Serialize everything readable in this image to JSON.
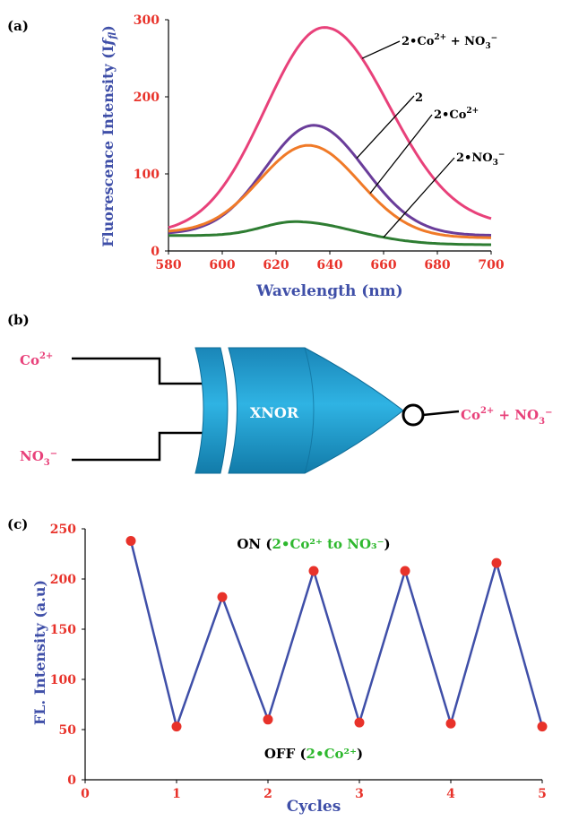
{
  "panel_a": {
    "label": "(a)",
    "chart_data": {
      "type": "line",
      "xlabel": "Wavelength (nm)",
      "ylabel": "Fluorescence Intensity (I",
      "ylabel_sub": "fl",
      "ylabel_close": ")",
      "xlim": [
        580,
        700
      ],
      "ylim": [
        0,
        300
      ],
      "xticks": [
        580,
        600,
        620,
        640,
        660,
        680,
        700
      ],
      "yticks": [
        0,
        100,
        200,
        300
      ],
      "series": [
        {
          "name": "2•Co²⁺ + NO₃⁻",
          "color": "#e8417a",
          "peak_x": 638,
          "peak_y": 290,
          "start_y": 22,
          "end_y": 33,
          "sl": 22,
          "sr": 24
        },
        {
          "name": "2",
          "color": "#6a3d9a",
          "peak_x": 634,
          "peak_y": 163,
          "start_y": 22,
          "end_y": 20,
          "sl": 18,
          "sr": 19
        },
        {
          "name": "2•Co²⁺",
          "color": "#f07a28",
          "peak_x": 632,
          "peak_y": 137,
          "start_y": 24,
          "end_y": 17,
          "sl": 18,
          "sr": 19
        },
        {
          "name": "2•NO₃⁻",
          "color": "#2e7d32",
          "peak_x": 627,
          "peak_y": 38,
          "start_y": 20,
          "end_y": 8,
          "sl": 12,
          "sr": 22
        }
      ]
    }
  },
  "panel_b": {
    "label": "(b)",
    "input1_base": "Co",
    "input1_sup": "2+",
    "input2_base": "NO",
    "input2_sub": "3",
    "input2_sup": "−",
    "gate_label": "XNOR",
    "output_base": "Co",
    "output_sup": "2+",
    "output_plus": " + NO",
    "output_sub": "3",
    "output_sup2": "−"
  },
  "panel_c": {
    "label": "(c)",
    "on_text": "ON (",
    "on_inner": "2•Co²⁺ to NO₃⁻",
    "on_close": ")",
    "off_text": "OFF (",
    "off_inner": "2•Co²⁺",
    "off_close": ")",
    "chart_data": {
      "type": "line",
      "xlabel": "Cycles",
      "ylabel": "FL. Intensity (a.u)",
      "xlim": [
        0,
        5
      ],
      "ylim": [
        0,
        250
      ],
      "xticks": [
        0,
        1,
        2,
        3,
        4,
        5
      ],
      "yticks": [
        0,
        50,
        100,
        150,
        200,
        250
      ],
      "line_color": "#3f4fa8",
      "marker_color": "#e8322a",
      "x": [
        0.5,
        1,
        1.5,
        2,
        2.5,
        3,
        3.5,
        4,
        4.5,
        5
      ],
      "y": [
        238,
        53,
        182,
        60,
        208,
        57,
        208,
        56,
        216,
        53
      ]
    }
  },
  "colors": {
    "axis_blue": "#3f4fa8",
    "tick_red": "#e8322a",
    "pink": "#e8417a",
    "green": "#2eb82e",
    "gate": "#1e9fd0"
  }
}
